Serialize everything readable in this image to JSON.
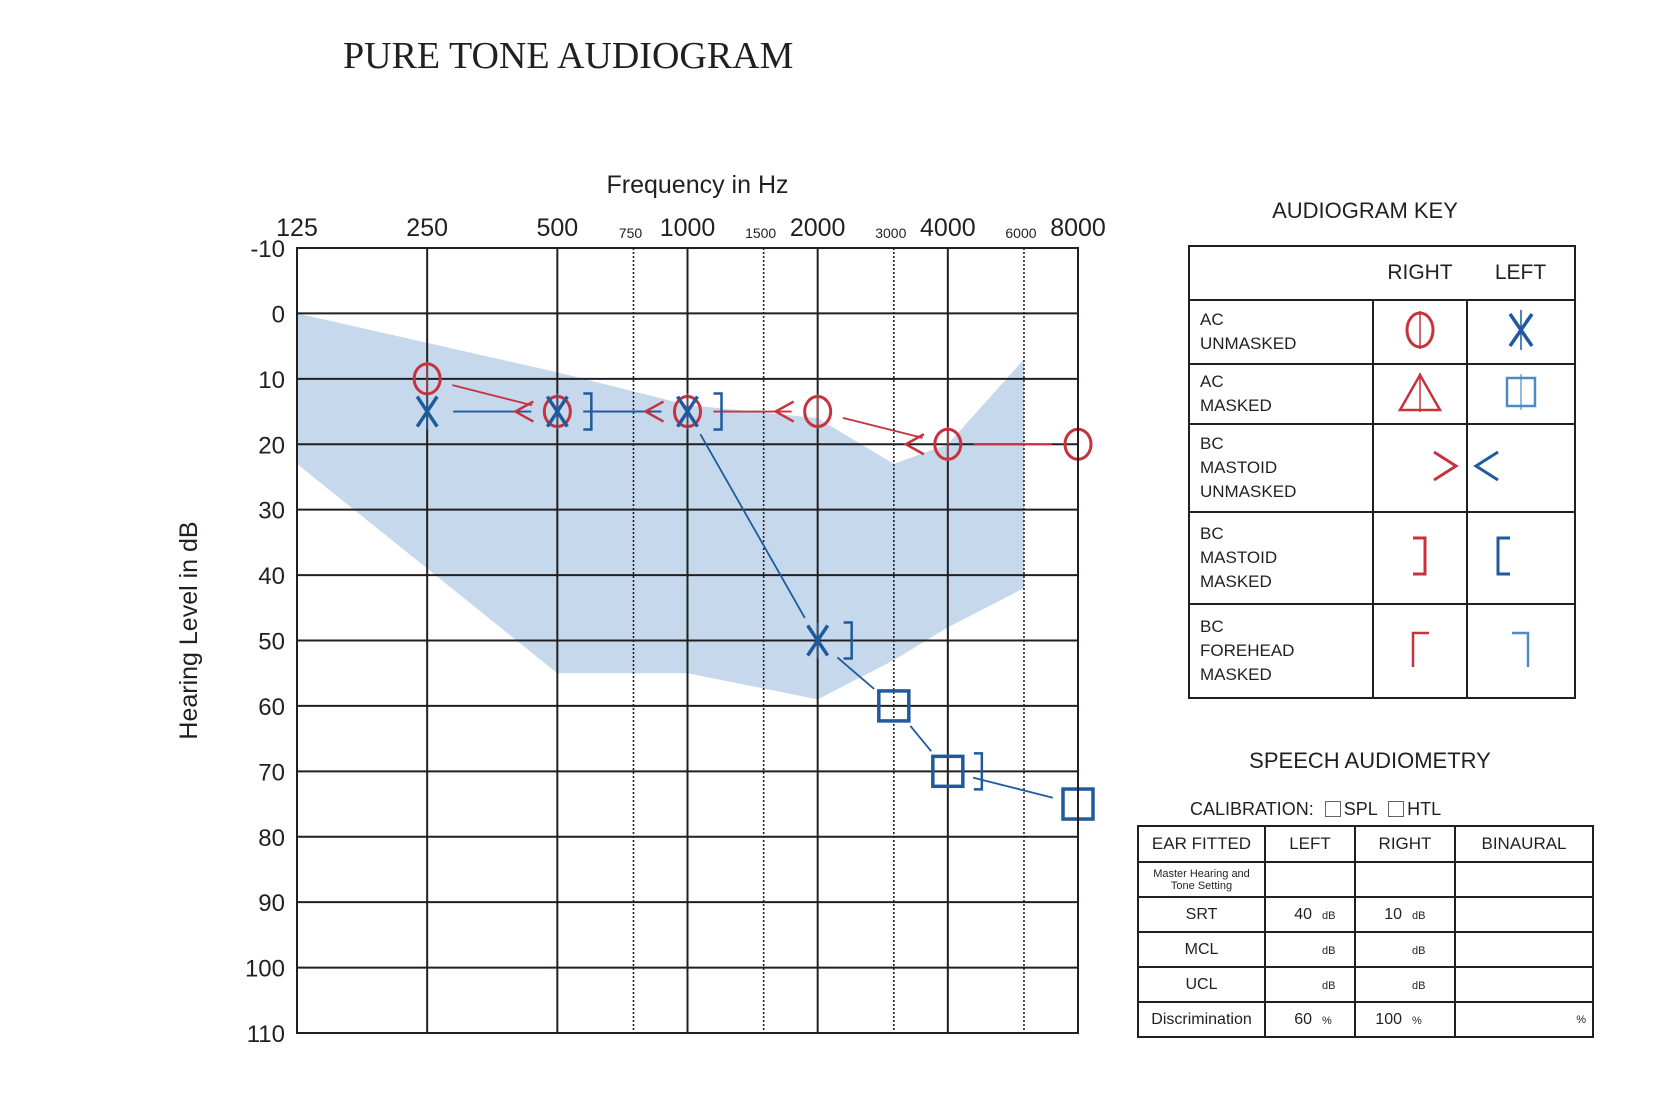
{
  "title": "PURE TONE AUDIOGRAM",
  "colors": {
    "right": "#c8323c",
    "left": "#1f5a9e",
    "normal_range": "#c5d8ec",
    "grid": "#231f20"
  },
  "chart_data": {
    "type": "audiogram",
    "xlabel": "Frequency in Hz",
    "ylabel": "Hearing Level in dB",
    "x_scale": "log2",
    "xlim": [
      125,
      8000
    ],
    "ylim": [
      -10,
      110
    ],
    "y_inverted": true,
    "x_major_ticks": [
      "125",
      "250",
      "500",
      "1000",
      "2000",
      "4000",
      "8000"
    ],
    "x_minor_ticks": [
      "750",
      "1500",
      "3000",
      "6000"
    ],
    "y_ticks": [
      "-10",
      "0",
      "10",
      "20",
      "30",
      "40",
      "50",
      "60",
      "70",
      "80",
      "90",
      "100",
      "110"
    ],
    "grid": true,
    "normal_range_band": {
      "upper": [
        [
          125,
          0
        ],
        [
          500,
          9
        ],
        [
          1000,
          14
        ],
        [
          2000,
          16
        ],
        [
          3000,
          23
        ],
        [
          4000,
          20
        ],
        [
          6000,
          7
        ]
      ],
      "lower": [
        [
          6000,
          42
        ],
        [
          4000,
          48
        ],
        [
          3000,
          53
        ],
        [
          2000,
          59
        ],
        [
          1000,
          55
        ],
        [
          500,
          55
        ],
        [
          125,
          23
        ]
      ]
    },
    "series": [
      {
        "name": "RIGHT",
        "symbol": "O",
        "points": [
          [
            250,
            10
          ],
          [
            500,
            15
          ],
          [
            1000,
            15
          ],
          [
            2000,
            15
          ],
          [
            4000,
            20
          ],
          [
            8000,
            20
          ]
        ]
      },
      {
        "name": "LEFT",
        "symbol": "X",
        "points": [
          [
            250,
            15
          ],
          [
            500,
            15
          ],
          [
            1000,
            15
          ],
          [
            2000,
            50
          ]
        ]
      },
      {
        "name": "LEFT",
        "symbol": "□",
        "points": [
          [
            3000,
            60
          ],
          [
            4000,
            70
          ],
          [
            8000,
            75
          ]
        ]
      }
    ],
    "bc_marks": [
      {
        "symbol": "<",
        "freq": 500,
        "db": 15,
        "offset": -1
      },
      {
        "symbol": "<",
        "freq": 1000,
        "db": 15,
        "offset": -1
      },
      {
        "symbol": "<",
        "freq": 2000,
        "db": 15,
        "offset": -1
      },
      {
        "symbol": "<",
        "freq": 4000,
        "db": 20,
        "offset": -1
      },
      {
        "symbol": "]",
        "freq": 500,
        "db": 15,
        "offset": 1
      },
      {
        "symbol": "]",
        "freq": 1000,
        "db": 15,
        "offset": 1
      },
      {
        "symbol": "]",
        "freq": 2000,
        "db": 50,
        "offset": 1
      },
      {
        "symbol": "]",
        "freq": 4000,
        "db": 70,
        "offset": 1
      }
    ]
  },
  "audiogram_key": {
    "title": "AUDIOGRAM KEY",
    "col_right": "RIGHT",
    "col_left": "LEFT",
    "rows": [
      {
        "lines": [
          "AC",
          "UNMASKED"
        ],
        "right_symbol": "circle",
        "left_symbol": "x"
      },
      {
        "lines": [
          "AC",
          "MASKED"
        ],
        "right_symbol": "triangle",
        "left_symbol": "square"
      },
      {
        "lines": [
          "BC",
          "MASTOID",
          "UNMASKED"
        ],
        "right_symbol": ">",
        "left_symbol": "<"
      },
      {
        "lines": [
          "BC",
          "MASTOID",
          "MASKED"
        ],
        "right_symbol": "]",
        "left_symbol": "["
      },
      {
        "lines": [
          "BC",
          "FOREHEAD",
          "MASKED"
        ],
        "right_symbol": "corner-left",
        "left_symbol": "corner-right"
      }
    ]
  },
  "speech": {
    "title": "SPEECH AUDIOMETRY",
    "calibration_label": "CALIBRATION:",
    "spl": "SPL",
    "htl": "HTL",
    "headers": [
      "EAR FITTED",
      "LEFT",
      "RIGHT",
      "BINAURAL"
    ],
    "rows": [
      {
        "label": "Master Hearing and Tone Setting",
        "left": "",
        "left_unit": "",
        "right": "",
        "right_unit": "",
        "bin_unit": ""
      },
      {
        "label": "SRT",
        "left": "40",
        "left_unit": "dB",
        "right": "10",
        "right_unit": "dB",
        "bin_unit": ""
      },
      {
        "label": "MCL",
        "left": "",
        "left_unit": "dB",
        "right": "",
        "right_unit": "dB",
        "bin_unit": ""
      },
      {
        "label": "UCL",
        "left": "",
        "left_unit": "dB",
        "right": "",
        "right_unit": "dB",
        "bin_unit": ""
      },
      {
        "label": "Discrimination",
        "left": "60",
        "left_unit": "%",
        "right": "100",
        "right_unit": "%",
        "bin_unit": "%"
      }
    ]
  }
}
